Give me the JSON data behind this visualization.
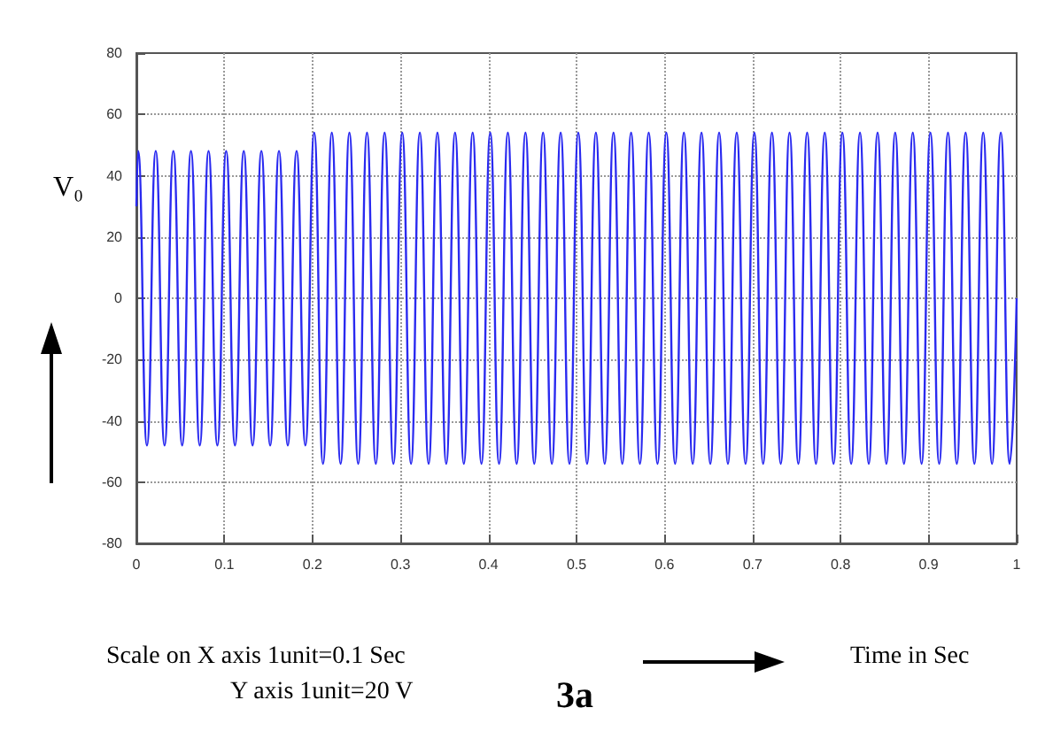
{
  "chart_data": {
    "type": "line",
    "xlabel": "Time in Sec",
    "ylabel": "V₀",
    "annotations": [
      "Scale on X axis 1unit=0.1 Sec",
      "Y axis 1unit=20 V",
      "3a"
    ],
    "x": [
      0,
      0.002,
      0.012,
      0.022,
      0.032,
      0.042,
      0.052,
      0.062,
      0.072,
      0.082,
      0.092,
      0.102,
      0.112,
      0.122,
      0.132,
      0.142,
      0.152,
      0.162,
      0.172,
      0.182,
      0.192,
      0.202,
      0.212,
      0.222,
      0.232,
      0.242,
      0.252,
      0.262,
      0.272,
      0.282,
      0.292,
      0.302,
      0.312,
      0.322,
      0.332,
      0.342,
      0.352,
      0.362,
      0.372,
      0.382,
      0.392,
      0.402,
      0.412,
      0.422,
      0.432,
      0.442,
      0.452,
      0.462,
      0.472,
      0.482,
      0.492,
      0.502,
      0.512,
      0.522,
      0.532,
      0.542,
      0.552,
      0.562,
      0.572,
      0.582,
      0.592,
      0.602,
      0.612,
      0.622,
      0.632,
      0.642,
      0.652,
      0.662,
      0.672,
      0.682,
      0.692,
      0.702,
      0.712,
      0.722,
      0.732,
      0.742,
      0.752,
      0.762,
      0.772,
      0.782,
      0.792,
      0.802,
      0.812,
      0.822,
      0.832,
      0.842,
      0.852,
      0.862,
      0.872,
      0.882,
      0.892,
      0.902,
      0.912,
      0.922,
      0.932,
      0.942,
      0.952,
      0.962,
      0.972,
      0.982,
      0.992,
      1
    ],
    "series": [
      {
        "color": "#2a2af0",
        "values": [
          30,
          48,
          -48,
          48,
          -48,
          48,
          -48,
          48,
          -48,
          48,
          -48,
          48,
          -48,
          48,
          -48,
          48,
          -48,
          48,
          -48,
          48,
          -48,
          54,
          -54,
          54,
          -54,
          54,
          -54,
          54,
          -54,
          54,
          -54,
          54,
          -54,
          54,
          -54,
          54,
          -54,
          54,
          -54,
          54,
          -54,
          54,
          -54,
          54,
          -54,
          54,
          -54,
          54,
          -54,
          54,
          -54,
          54,
          -54,
          54,
          -54,
          54,
          -54,
          54,
          -54,
          54,
          -54,
          54,
          -54,
          54,
          -54,
          54,
          -54,
          54,
          -54,
          54,
          -54,
          54,
          -54,
          54,
          -54,
          54,
          -54,
          54,
          -54,
          54,
          -54,
          54,
          -54,
          54,
          -54,
          54,
          -54,
          54,
          -54,
          54,
          -54,
          54,
          -54,
          54,
          -54,
          54,
          -54,
          54,
          -54,
          54,
          -54,
          0
        ]
      }
    ],
    "xlim": [
      0,
      1
    ],
    "xticks": [
      0,
      0.1,
      0.2,
      0.3,
      0.4,
      0.5,
      0.6,
      0.7,
      0.8,
      0.9,
      1
    ],
    "ylim": [
      -80,
      80
    ],
    "yticks": [
      -80,
      -60,
      -40,
      -20,
      0,
      20,
      40,
      60,
      80
    ],
    "grid": true,
    "marker": "none",
    "line_style": "solid"
  }
}
